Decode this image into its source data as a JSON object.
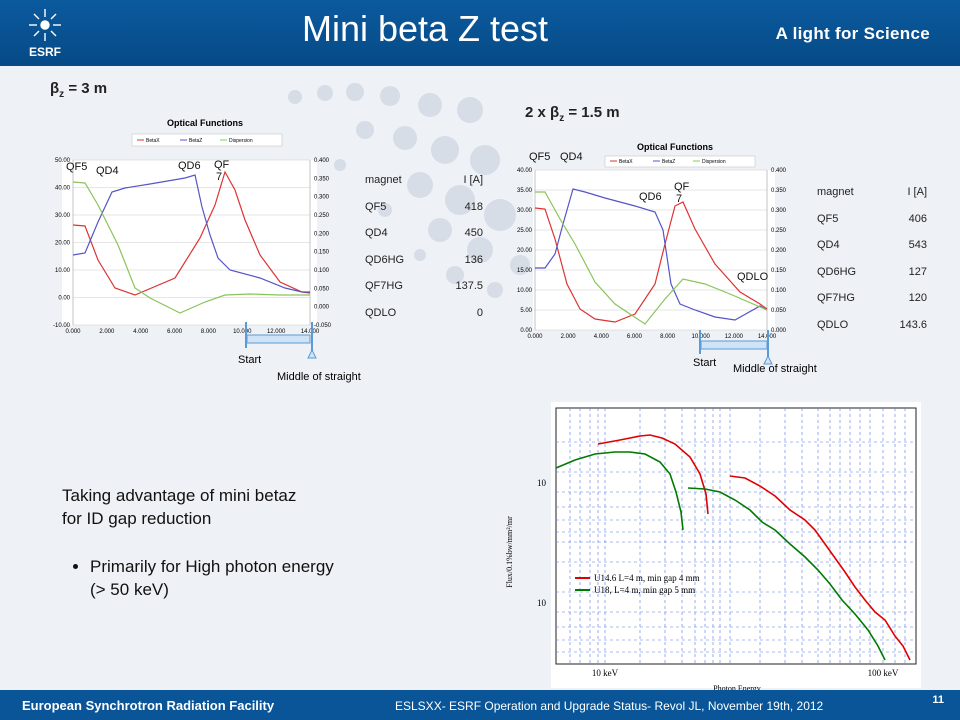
{
  "header": {
    "title": "Mini beta Z test",
    "tagline": "A light for Science",
    "logo_text": "ESRF"
  },
  "footer": {
    "left": "European Synchrotron Radiation Facility",
    "center": "ESLSXX- ESRF Operation and Upgrade Status- Revol JL, November 19th, 2012",
    "page": "11"
  },
  "left_panel": {
    "label": "β",
    "label_sub": "z",
    "label_rest": " = 3 m",
    "plot_title": "Optical Functions",
    "legend": [
      "BetaX",
      "BetaZ",
      "Dispersion"
    ],
    "quad_labels": [
      "QF5",
      "QD4",
      "QD6",
      "QF",
      "7"
    ],
    "y_left_ticks": [
      "50.00",
      "40.00",
      "30.00",
      "20.00",
      "10.00",
      "0.00",
      "-10.00"
    ],
    "y_right_ticks": [
      "0.400",
      "0.350",
      "0.300",
      "0.250",
      "0.200",
      "0.150",
      "0.100",
      "0.050",
      "0.000",
      "-0.050"
    ],
    "x_ticks": [
      "0.000",
      "2.000",
      "4.000",
      "6.000",
      "8.000",
      "10.000",
      "12.000",
      "14.000"
    ],
    "start": "Start",
    "middle": "Middle of straight",
    "table": {
      "head": [
        "magnet",
        "I [A]"
      ],
      "rows": [
        [
          "QF5",
          "418"
        ],
        [
          "QD4",
          "450"
        ],
        [
          "QD6HG",
          "136"
        ],
        [
          "QF7HG",
          "137.5"
        ],
        [
          "QDLO",
          "0"
        ]
      ]
    }
  },
  "right_panel": {
    "label_prefix": "2 x β",
    "label_sub": "z",
    "label_rest": " = 1.5 m",
    "plot_title": "Optical Functions",
    "legend": [
      "BetaX",
      "BetaZ",
      "Dispersion"
    ],
    "quad_labels": [
      "QF5",
      "QD4",
      "QD6",
      "QF",
      "7",
      "QDLO"
    ],
    "y_left_ticks": [
      "40.00",
      "35.00",
      "30.00",
      "25.00",
      "20.00",
      "15.00",
      "10.00",
      "5.00",
      "0.00"
    ],
    "y_right_ticks": [
      "0.400",
      "0.350",
      "0.300",
      "0.250",
      "0.200",
      "0.150",
      "0.100",
      "0.050",
      "0.000"
    ],
    "x_ticks": [
      "0.000",
      "2.000",
      "4.000",
      "6.000",
      "8.000",
      "10.000",
      "12.000",
      "14.000"
    ],
    "start": "Start",
    "middle": "Middle of straight",
    "table": {
      "head": [
        "magnet",
        "I [A]"
      ],
      "rows": [
        [
          "QF5",
          "406"
        ],
        [
          "QD4",
          "543"
        ],
        [
          "QD6HG",
          "127"
        ],
        [
          "QF7HG",
          "120"
        ],
        [
          "QDLO",
          "143.6"
        ]
      ]
    }
  },
  "body": {
    "line1": "Taking advantage of mini betaz",
    "line2": "for ID gap reduction",
    "bullet1": "Primarily for High photon energy",
    "bullet2": "(> 50 keV)"
  },
  "flux_chart": {
    "ylabel": "Flux/0.1%bw/mm²/mr",
    "xlabel": "Photon Energy",
    "y_ticks": [
      "10",
      "10"
    ],
    "x_ticks": [
      "10 keV",
      "100 keV"
    ],
    "legend": [
      "U14.6 L=4 m, min gap 4 mm",
      "U18, L=4 m, min gap 5 mm"
    ],
    "colors": {
      "red": "#e00000",
      "green": "#007a00"
    }
  }
}
